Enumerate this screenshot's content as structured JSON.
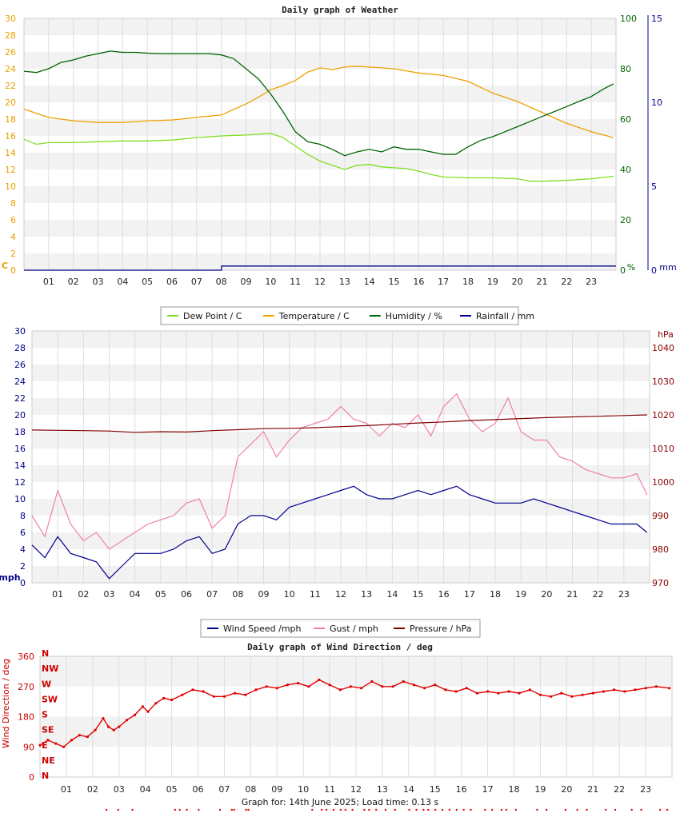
{
  "footer": "Graph for: 14th June 2025; Load time: 0.13 s",
  "chart_data": [
    {
      "type": "line",
      "title": "Daily graph of Weather",
      "x_ticks": [
        "01",
        "02",
        "03",
        "04",
        "05",
        "06",
        "07",
        "08",
        "09",
        "10",
        "11",
        "12",
        "13",
        "14",
        "15",
        "16",
        "17",
        "18",
        "19",
        "20",
        "21",
        "22",
        "23"
      ],
      "xlim": [
        0,
        24
      ],
      "axes": {
        "left": {
          "unit": "C",
          "ylim": [
            0,
            30
          ],
          "ticks": [
            0,
            2,
            4,
            6,
            8,
            10,
            12,
            14,
            16,
            18,
            20,
            22,
            24,
            26,
            28,
            30
          ],
          "color": "#e8a000"
        },
        "right1": {
          "unit": "%",
          "ylim": [
            0,
            100
          ],
          "ticks": [
            0,
            20,
            40,
            60,
            80,
            100
          ],
          "color": "#006400"
        },
        "right2": {
          "unit": "mm",
          "ylim": [
            0,
            15
          ],
          "ticks": [
            0,
            5,
            10,
            15
          ],
          "color": "#00008b"
        }
      },
      "legend": [
        "Dew Point / C",
        "Temperature / C",
        "Humidity / %",
        "Rainfall / mm"
      ],
      "legend_placement": "bottom",
      "grid": true,
      "series": [
        {
          "name": "Dew Point / C",
          "axis": "left",
          "color": "#7ee020",
          "x": [
            0,
            0.5,
            1,
            2,
            3,
            4,
            5,
            6,
            7,
            8,
            9,
            9.5,
            10,
            10.5,
            11,
            11.5,
            12,
            12.5,
            13,
            13.5,
            14,
            14.5,
            15,
            15.5,
            16,
            16.5,
            17,
            18,
            19,
            20,
            20.5,
            21,
            22,
            23,
            23.9
          ],
          "y": [
            15.6,
            15.0,
            15.2,
            15.2,
            15.3,
            15.4,
            15.4,
            15.5,
            15.8,
            16.0,
            16.1,
            16.2,
            16.3,
            15.8,
            14.8,
            13.8,
            13.0,
            12.5,
            12.0,
            12.5,
            12.6,
            12.3,
            12.2,
            12.1,
            11.8,
            11.4,
            11.1,
            11.0,
            11.0,
            10.9,
            10.6,
            10.6,
            10.7,
            10.9,
            11.2
          ]
        },
        {
          "name": "Temperature / C",
          "axis": "left",
          "color": "#f0a000",
          "x": [
            0,
            0.5,
            1,
            2,
            3,
            4,
            5,
            6,
            7,
            8,
            9,
            9.5,
            10,
            10.5,
            11,
            11.5,
            12,
            12.5,
            13,
            13.5,
            14,
            15,
            16,
            17,
            18,
            19,
            20,
            21,
            22,
            23,
            23.9
          ],
          "y": [
            19.2,
            18.7,
            18.2,
            17.8,
            17.6,
            17.6,
            17.8,
            17.9,
            18.2,
            18.5,
            19.8,
            20.6,
            21.5,
            22.0,
            22.6,
            23.6,
            24.1,
            23.9,
            24.2,
            24.3,
            24.2,
            24.0,
            23.5,
            23.2,
            22.5,
            21.1,
            20.1,
            18.8,
            17.5,
            16.5,
            15.8
          ]
        },
        {
          "name": "Humidity / %",
          "axis": "left_pct",
          "color": "#006400",
          "x": [
            0,
            0.5,
            1,
            1.5,
            2,
            2.5,
            3,
            3.5,
            4,
            4.5,
            5,
            5.5,
            6,
            6.5,
            7,
            7.5,
            8,
            8.5,
            9,
            9.5,
            10,
            10.5,
            11,
            11.5,
            12,
            12.5,
            13,
            13.5,
            14,
            14.5,
            15,
            15.5,
            16,
            16.5,
            17,
            17.5,
            18,
            18.5,
            19,
            19.5,
            20,
            20.5,
            21,
            21.5,
            22,
            22.5,
            23,
            23.5,
            23.9
          ],
          "y": [
            79,
            78.5,
            80,
            82.5,
            83.5,
            85,
            86,
            87,
            86.5,
            86.5,
            86.2,
            86,
            86,
            86,
            86,
            86,
            85.5,
            84,
            80,
            76,
            70,
            63,
            55,
            51,
            50,
            48,
            45.5,
            47,
            48,
            47,
            49,
            48,
            48,
            47,
            46,
            46,
            49,
            51.5,
            53,
            55,
            57,
            59,
            61,
            63,
            65,
            67,
            69,
            72,
            74
          ]
        },
        {
          "name": "Rainfall / mm",
          "axis": "right2",
          "color": "#00008b",
          "x": [
            0,
            8,
            8.01,
            24
          ],
          "y": [
            0,
            0,
            0.25,
            0.25
          ]
        }
      ]
    },
    {
      "type": "line",
      "title": "Daily graph of Wind",
      "x_ticks": [
        "01",
        "02",
        "03",
        "04",
        "05",
        "06",
        "07",
        "08",
        "09",
        "10",
        "11",
        "12",
        "13",
        "14",
        "15",
        "16",
        "17",
        "18",
        "19",
        "20",
        "21",
        "22",
        "23"
      ],
      "xlim": [
        0,
        24
      ],
      "axes": {
        "left": {
          "unit": "mph",
          "ylim": [
            0,
            30
          ],
          "ticks": [
            0,
            2,
            4,
            6,
            8,
            10,
            12,
            14,
            16,
            18,
            20,
            22,
            24,
            26,
            28,
            30
          ],
          "color": "#00008b"
        },
        "right": {
          "unit": "hPa",
          "ylim": [
            970,
            1045
          ],
          "ticks": [
            970,
            980,
            990,
            1000,
            1010,
            1020,
            1030,
            1040
          ],
          "color": "#8b0000"
        }
      },
      "legend": [
        "Wind Speed /mph",
        "Gust / mph",
        "Pressure / hPa"
      ],
      "legend_placement": "bottom",
      "grid": true,
      "series": [
        {
          "name": "Wind Speed /mph",
          "axis": "left",
          "color": "#00008b",
          "x": [
            0,
            0.5,
            1,
            1.5,
            2,
            2.5,
            3,
            3.5,
            4,
            4.5,
            5,
            5.5,
            6,
            6.5,
            7,
            7.5,
            8,
            8.5,
            9,
            9.5,
            10,
            10.5,
            11,
            11.5,
            12,
            12.5,
            13,
            13.5,
            14,
            14.5,
            15,
            15.5,
            16,
            16.5,
            17,
            17.5,
            18,
            18.5,
            19,
            19.5,
            20,
            20.5,
            21,
            21.5,
            22,
            22.5,
            23,
            23.5,
            23.9
          ],
          "y": [
            4.5,
            3.0,
            5.5,
            3.5,
            3.0,
            2.5,
            0.5,
            2.0,
            3.5,
            3.5,
            3.5,
            4.0,
            5.0,
            5.5,
            3.5,
            4.0,
            7.0,
            8.0,
            8.0,
            7.5,
            9.0,
            9.5,
            10.0,
            10.5,
            11.0,
            11.5,
            10.5,
            10.0,
            10.0,
            10.5,
            11.0,
            10.5,
            11.0,
            11.5,
            10.5,
            10.0,
            9.5,
            9.5,
            9.5,
            10.0,
            9.5,
            9.0,
            8.5,
            8.0,
            7.5,
            7.0,
            7.0,
            7.0,
            6.0
          ]
        },
        {
          "name": "Gust / mph",
          "axis": "left",
          "color": "#f080a8",
          "x": [
            0,
            0.5,
            1,
            1.5,
            2,
            2.5,
            3,
            3.5,
            4,
            4.5,
            5,
            5.5,
            6,
            6.5,
            7,
            7.5,
            8,
            8.5,
            9,
            9.5,
            10,
            10.5,
            11,
            11.5,
            12,
            12.5,
            13,
            13.5,
            14,
            14.5,
            15,
            15.5,
            16,
            16.5,
            17,
            17.5,
            18,
            18.5,
            19,
            19.5,
            20,
            20.5,
            21,
            21.5,
            22,
            22.5,
            23,
            23.5,
            23.9
          ],
          "y": [
            8.0,
            5.5,
            11.0,
            7.0,
            5.0,
            6.0,
            4.0,
            5.0,
            6.0,
            7.0,
            7.5,
            8.0,
            9.5,
            10.0,
            6.5,
            8.0,
            15.0,
            16.5,
            18.0,
            15.0,
            17.0,
            18.5,
            19.0,
            19.5,
            21.0,
            19.5,
            19.0,
            17.5,
            19.0,
            18.5,
            20.0,
            17.5,
            21.0,
            22.5,
            19.5,
            18.0,
            19.0,
            22.0,
            18.0,
            17.0,
            17.0,
            15.0,
            14.5,
            13.5,
            13.0,
            12.5,
            12.5,
            13.0,
            10.5
          ]
        },
        {
          "name": "Pressure / hPa",
          "axis": "right",
          "color": "#800000",
          "x": [
            0,
            1,
            2,
            3,
            4,
            5,
            6,
            7,
            8,
            9,
            10,
            11,
            12,
            13,
            14,
            15,
            16,
            17,
            18,
            19,
            20,
            21,
            22,
            23,
            23.9
          ],
          "y": [
            1015.5,
            1015.4,
            1015.3,
            1015.2,
            1014.8,
            1015.0,
            1014.9,
            1015.3,
            1015.6,
            1015.9,
            1016.0,
            1016.2,
            1016.5,
            1016.8,
            1017.2,
            1017.6,
            1017.9,
            1018.3,
            1018.6,
            1018.9,
            1019.2,
            1019.4,
            1019.6,
            1019.8,
            1020.0
          ]
        }
      ]
    },
    {
      "type": "scatter",
      "title": "Daily graph of Wind Direction / deg",
      "ylabel": "Wind Direction / deg",
      "x_ticks": [
        "01",
        "02",
        "03",
        "04",
        "05",
        "06",
        "07",
        "08",
        "09",
        "10",
        "11",
        "12",
        "13",
        "14",
        "15",
        "16",
        "17",
        "18",
        "19",
        "20",
        "21",
        "22",
        "23"
      ],
      "xlim": [
        0,
        24
      ],
      "ylim": [
        0,
        360
      ],
      "y_ticks": [
        0,
        90,
        180,
        270,
        360
      ],
      "compass_labels": [
        "N",
        "NE",
        "E",
        "SE",
        "S",
        "SW",
        "W",
        "NW",
        "N"
      ],
      "grid": true,
      "series": [
        {
          "name": "Wind Direction",
          "color": "#e00000",
          "x": [
            0,
            0.3,
            0.6,
            0.9,
            1.2,
            1.5,
            1.8,
            2.1,
            2.4,
            2.6,
            2.8,
            3.0,
            3.3,
            3.6,
            3.9,
            4.1,
            4.4,
            4.7,
            5.0,
            5.4,
            5.8,
            6.2,
            6.6,
            7.0,
            7.4,
            7.8,
            8.2,
            8.6,
            9.0,
            9.4,
            9.8,
            10.2,
            10.6,
            11.0,
            11.4,
            11.8,
            12.2,
            12.6,
            13.0,
            13.4,
            13.8,
            14.2,
            14.6,
            15.0,
            15.4,
            15.8,
            16.2,
            16.6,
            17.0,
            17.4,
            17.8,
            18.2,
            18.6,
            19.0,
            19.4,
            19.8,
            20.2,
            20.6,
            21.0,
            21.4,
            21.8,
            22.2,
            22.6,
            23.0,
            23.4,
            23.9
          ],
          "y": [
            95,
            110,
            100,
            90,
            110,
            125,
            120,
            140,
            175,
            150,
            140,
            150,
            170,
            185,
            210,
            195,
            220,
            235,
            230,
            245,
            260,
            255,
            240,
            240,
            250,
            245,
            260,
            270,
            265,
            275,
            280,
            270,
            290,
            275,
            260,
            270,
            265,
            285,
            270,
            270,
            285,
            275,
            265,
            275,
            260,
            255,
            265,
            250,
            255,
            250,
            255,
            250,
            260,
            245,
            240,
            250,
            240,
            245,
            250,
            255,
            260,
            255,
            260,
            265,
            270,
            265
          ]
        }
      ],
      "bottom_marker_hours": [
        0.1,
        0.6,
        1.2,
        3.0,
        3.2,
        3.5,
        4.0,
        4.9,
        5.4,
        5.5,
        6.0,
        6.1,
        8.8,
        9.2,
        9.4,
        9.7,
        10.0,
        10.2,
        10.5,
        11.0,
        11.2,
        11.5,
        11.9,
        12.3,
        12.9,
        13.2,
        13.5,
        13.7,
        14.0,
        14.3,
        14.6,
        14.9,
        15.2,
        15.5,
        16.1,
        16.4,
        16.8,
        17.0,
        17.4,
        18.3,
        18.7,
        19.5,
        20.0,
        20.4,
        21.2,
        21.6,
        22.3,
        22.7,
        23.5,
        23.8
      ]
    }
  ]
}
